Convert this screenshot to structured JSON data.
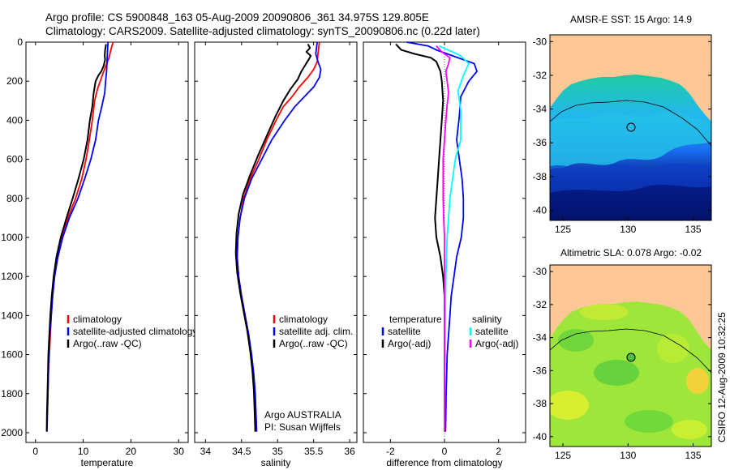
{
  "figure": {
    "title_line1": "Argo profile: CS 5900848_163 05-Aug-2009 20090806_361 34.975S 129.805E",
    "title_line2": "Climatology: CARS2009. Satellite-adjusted climatology: synTS_20090806.nc (0.22d later)",
    "side_label": "CSIRO 12-Aug-2009 10:32:25"
  },
  "colors": {
    "red": "#ff0000",
    "blue": "#0000ff",
    "black": "#000000",
    "cyan": "#00ffff",
    "magenta": "#ff00ff",
    "land": "#fdc896"
  },
  "depth_ticks": [
    "0",
    "200",
    "400",
    "600",
    "800",
    "1000",
    "1200",
    "1400",
    "1600",
    "1800",
    "2000"
  ],
  "chart_data": [
    {
      "type": "line",
      "xlabel": "temperature",
      "ylabel": "",
      "xlim": [
        -2,
        32
      ],
      "ylim": [
        2050,
        0
      ],
      "xticks": [
        "0",
        "10",
        "20",
        "30"
      ],
      "legend": [
        "climatology",
        "satellite-adjusted climatology",
        "Argo(..raw -QC)"
      ],
      "series": [
        {
          "name": "climatology",
          "color": "red",
          "points": [
            [
              16.3,
              0
            ],
            [
              16.0,
              20
            ],
            [
              15.7,
              50
            ],
            [
              15.4,
              80
            ],
            [
              15.1,
              100
            ],
            [
              14.6,
              130
            ],
            [
              14.0,
              170
            ],
            [
              13.0,
              240
            ],
            [
              12.4,
              300
            ],
            [
              11.9,
              400
            ],
            [
              11.3,
              500
            ],
            [
              10.6,
              600
            ],
            [
              9.7,
              700
            ],
            [
              8.4,
              800
            ],
            [
              6.8,
              900
            ],
            [
              5.5,
              1000
            ],
            [
              4.6,
              1100
            ],
            [
              4.0,
              1200
            ],
            [
              3.6,
              1300
            ],
            [
              3.3,
              1400
            ],
            [
              3.1,
              1500
            ],
            [
              2.9,
              1600
            ],
            [
              2.7,
              1700
            ],
            [
              2.6,
              1800
            ],
            [
              2.5,
              1880
            ]
          ]
        },
        {
          "name": "satellite-adjusted climatology",
          "color": "blue",
          "points": [
            [
              15.2,
              0
            ],
            [
              15.1,
              40
            ],
            [
              15.0,
              100
            ],
            [
              14.9,
              150
            ],
            [
              14.7,
              200
            ],
            [
              14.5,
              260
            ],
            [
              13.9,
              330
            ],
            [
              13.2,
              400
            ],
            [
              12.6,
              500
            ],
            [
              11.6,
              600
            ],
            [
              10.3,
              700
            ],
            [
              8.9,
              800
            ],
            [
              7.1,
              900
            ],
            [
              5.7,
              1000
            ],
            [
              4.7,
              1100
            ],
            [
              4.0,
              1200
            ],
            [
              3.6,
              1300
            ],
            [
              3.3,
              1400
            ],
            [
              3.0,
              1500
            ],
            [
              2.8,
              1600
            ],
            [
              2.7,
              1700
            ],
            [
              2.6,
              1800
            ],
            [
              2.5,
              1900
            ],
            [
              2.4,
              1995
            ]
          ]
        },
        {
          "name": "Argo(..raw -QC)",
          "color": "black",
          "points": [
            [
              14.8,
              10
            ],
            [
              14.6,
              40
            ],
            [
              14.5,
              70
            ],
            [
              14.6,
              90
            ],
            [
              14.3,
              120
            ],
            [
              13.8,
              150
            ],
            [
              13.2,
              170
            ],
            [
              12.6,
              200
            ],
            [
              12.2,
              260
            ],
            [
              11.9,
              330
            ],
            [
              11.4,
              400
            ],
            [
              10.9,
              500
            ],
            [
              10.1,
              600
            ],
            [
              9.0,
              700
            ],
            [
              7.8,
              800
            ],
            [
              6.5,
              900
            ],
            [
              5.3,
              1000
            ],
            [
              4.4,
              1100
            ],
            [
              3.8,
              1200
            ],
            [
              3.4,
              1300
            ],
            [
              3.1,
              1400
            ],
            [
              2.9,
              1500
            ],
            [
              2.7,
              1600
            ],
            [
              2.6,
              1700
            ],
            [
              2.5,
              1800
            ],
            [
              2.4,
              1900
            ],
            [
              2.35,
              1995
            ]
          ]
        }
      ]
    },
    {
      "type": "line",
      "xlabel": "salinity",
      "ylabel": "",
      "xlim": [
        33.85,
        36.1
      ],
      "ylim": [
        2050,
        0
      ],
      "xticks": [
        "34",
        "34.5",
        "35",
        "35.5",
        "36"
      ],
      "legend": [
        "climatology",
        "satellite adj. clim.",
        "Argo(..raw -QC)"
      ],
      "annotation": [
        "Argo AUSTRALIA",
        "PI: Susan Wijffels"
      ],
      "series": [
        {
          "name": "climatology",
          "color": "red",
          "points": [
            [
              35.58,
              0
            ],
            [
              35.57,
              30
            ],
            [
              35.56,
              60
            ],
            [
              35.55,
              100
            ],
            [
              35.5,
              140
            ],
            [
              35.42,
              180
            ],
            [
              35.3,
              230
            ],
            [
              35.2,
              280
            ],
            [
              35.08,
              330
            ],
            [
              34.98,
              400
            ],
            [
              34.85,
              500
            ],
            [
              34.74,
              600
            ],
            [
              34.62,
              700
            ],
            [
              34.53,
              800
            ],
            [
              34.48,
              900
            ],
            [
              34.45,
              1000
            ],
            [
              34.44,
              1100
            ],
            [
              34.46,
              1200
            ],
            [
              34.5,
              1300
            ],
            [
              34.55,
              1400
            ],
            [
              34.6,
              1500
            ],
            [
              34.63,
              1600
            ],
            [
              34.66,
              1700
            ],
            [
              34.68,
              1800
            ],
            [
              34.69,
              1880
            ]
          ]
        },
        {
          "name": "satellite adj. clim.",
          "color": "blue",
          "points": [
            [
              35.55,
              0
            ],
            [
              35.54,
              30
            ],
            [
              35.53,
              60
            ],
            [
              35.56,
              100
            ],
            [
              35.6,
              140
            ],
            [
              35.58,
              180
            ],
            [
              35.5,
              230
            ],
            [
              35.37,
              280
            ],
            [
              35.24,
              330
            ],
            [
              35.1,
              400
            ],
            [
              34.92,
              500
            ],
            [
              34.78,
              600
            ],
            [
              34.64,
              700
            ],
            [
              34.54,
              800
            ],
            [
              34.48,
              900
            ],
            [
              34.45,
              1000
            ],
            [
              34.44,
              1100
            ],
            [
              34.46,
              1200
            ],
            [
              34.5,
              1300
            ],
            [
              34.55,
              1400
            ],
            [
              34.6,
              1500
            ],
            [
              34.64,
              1600
            ],
            [
              34.67,
              1700
            ],
            [
              34.69,
              1800
            ],
            [
              34.7,
              1900
            ],
            [
              34.71,
              1995
            ]
          ]
        },
        {
          "name": "Argo(..raw -QC)",
          "color": "black",
          "points": [
            [
              35.42,
              10
            ],
            [
              35.45,
              30
            ],
            [
              35.4,
              50
            ],
            [
              35.46,
              70
            ],
            [
              35.43,
              90
            ],
            [
              35.38,
              120
            ],
            [
              35.33,
              150
            ],
            [
              35.28,
              190
            ],
            [
              35.18,
              240
            ],
            [
              35.08,
              300
            ],
            [
              34.97,
              380
            ],
            [
              34.85,
              480
            ],
            [
              34.73,
              580
            ],
            [
              34.62,
              680
            ],
            [
              34.52,
              780
            ],
            [
              34.46,
              880
            ],
            [
              34.43,
              980
            ],
            [
              34.42,
              1080
            ],
            [
              34.44,
              1180
            ],
            [
              34.48,
              1280
            ],
            [
              34.53,
              1380
            ],
            [
              34.58,
              1480
            ],
            [
              34.62,
              1580
            ],
            [
              34.65,
              1680
            ],
            [
              34.67,
              1780
            ],
            [
              34.68,
              1880
            ],
            [
              34.69,
              1995
            ]
          ]
        }
      ]
    },
    {
      "type": "line",
      "xlabel": "difference from climatology",
      "ylabel": "",
      "xlim": [
        -3,
        3
      ],
      "ylim": [
        2050,
        0
      ],
      "xticks": [
        "-2",
        "0",
        "2"
      ],
      "legend_columns": [
        {
          "heading": "temperature",
          "entries": [
            "satellite",
            "Argo(-adj)"
          ]
        },
        {
          "heading": "salinity",
          "entries": [
            "satellite",
            "Argo(-adj)"
          ]
        }
      ],
      "series": [
        {
          "name": "temperature satellite",
          "color": "blue",
          "points": [
            [
              -1.4,
              0
            ],
            [
              -0.6,
              20
            ],
            [
              -0.3,
              40
            ],
            [
              0.3,
              70
            ],
            [
              0.7,
              90
            ],
            [
              1.1,
              110
            ],
            [
              1.2,
              150
            ],
            [
              0.9,
              200
            ],
            [
              0.6,
              280
            ],
            [
              0.55,
              380
            ],
            [
              0.45,
              500
            ],
            [
              0.55,
              600
            ],
            [
              0.65,
              700
            ],
            [
              0.7,
              800
            ],
            [
              0.7,
              900
            ],
            [
              0.62,
              1000
            ],
            [
              0.45,
              1100
            ],
            [
              0.35,
              1200
            ],
            [
              0.25,
              1300
            ],
            [
              0.2,
              1400
            ],
            [
              0.15,
              1500
            ],
            [
              0.1,
              1600
            ],
            [
              0.08,
              1700
            ],
            [
              0.06,
              1800
            ],
            [
              0.05,
              1900
            ],
            [
              0.04,
              1995
            ]
          ]
        },
        {
          "name": "temperature Argo(-adj)",
          "color": "black",
          "points": [
            [
              -1.8,
              10
            ],
            [
              -1.6,
              40
            ],
            [
              -1.1,
              60
            ],
            [
              -0.5,
              80
            ],
            [
              -0.3,
              100
            ],
            [
              -0.15,
              150
            ],
            [
              -0.1,
              200
            ],
            [
              -0.05,
              300
            ],
            [
              -0.1,
              400
            ],
            [
              -0.15,
              500
            ],
            [
              -0.2,
              600
            ],
            [
              -0.25,
              700
            ],
            [
              -0.3,
              800
            ],
            [
              -0.35,
              900
            ],
            [
              -0.3,
              1000
            ],
            [
              -0.15,
              1100
            ],
            [
              -0.05,
              1200
            ],
            [
              0.0,
              1300
            ],
            [
              0.0,
              1500
            ],
            [
              0.0,
              1995
            ]
          ]
        },
        {
          "name": "salinity satellite",
          "color": "cyan",
          "points": [
            [
              -0.2,
              20
            ],
            [
              0.3,
              50
            ],
            [
              0.6,
              70
            ],
            [
              0.9,
              110
            ],
            [
              0.7,
              170
            ],
            [
              0.5,
              250
            ],
            [
              0.6,
              350
            ],
            [
              0.6,
              500
            ],
            [
              0.4,
              600
            ],
            [
              0.3,
              700
            ],
            [
              0.2,
              800
            ],
            [
              0.15,
              900
            ],
            [
              0.1,
              1000
            ],
            [
              0.05,
              1200
            ],
            [
              0.02,
              1500
            ],
            [
              0.0,
              1995
            ]
          ]
        },
        {
          "name": "salinity Argo(-adj)",
          "color": "magenta",
          "points": [
            [
              -0.3,
              20
            ],
            [
              -0.1,
              50
            ],
            [
              0.2,
              80
            ],
            [
              0.15,
              110
            ],
            [
              0.05,
              150
            ],
            [
              0.1,
              200
            ],
            [
              0.15,
              260
            ],
            [
              0.1,
              320
            ],
            [
              0.05,
              400
            ],
            [
              0.0,
              500
            ],
            [
              -0.05,
              600
            ],
            [
              -0.05,
              700
            ],
            [
              -0.05,
              800
            ],
            [
              -0.03,
              900
            ],
            [
              0.0,
              1000
            ],
            [
              0.0,
              1995
            ]
          ]
        }
      ]
    },
    {
      "type": "heatmap",
      "title": "AMSR-E SST: 15 Argo: 14.9",
      "xlim": [
        124,
        136.4
      ],
      "ylim": [
        -40.6,
        -29.6
      ],
      "xticks": [
        "125",
        "130",
        "135"
      ],
      "yticks": [
        "-30",
        "-32",
        "-34",
        "-36",
        "-38",
        "-40"
      ],
      "marker": {
        "lon": 129.805,
        "lat": -34.975
      }
    },
    {
      "type": "heatmap",
      "title": "Altimetric SLA: 0.078 Argo: -0.02",
      "xlim": [
        124,
        136.4
      ],
      "ylim": [
        -40.6,
        -29.6
      ],
      "xticks": [
        "125",
        "130",
        "135"
      ],
      "yticks": [
        "-30",
        "-32",
        "-34",
        "-36",
        "-38",
        "-40"
      ],
      "marker": {
        "lon": 129.805,
        "lat": -34.975
      }
    }
  ]
}
